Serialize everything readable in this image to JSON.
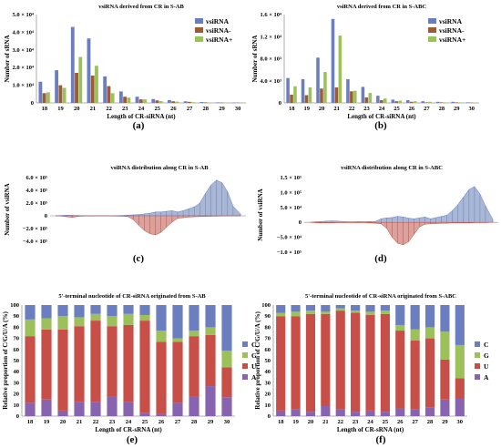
{
  "colors": {
    "blue": "#6b7fc0",
    "brown": "#9c5a36",
    "green": "#9dc15a",
    "red": "#c84f48",
    "yellow": "#e8c44a",
    "purple": "#8864b0"
  },
  "chart_data": [
    {
      "panel": "(a)",
      "type": "bar",
      "title": "vsiRNA derived from CR in S-AB",
      "xlabel": "Length of CR-siRNA (nt)",
      "ylabel": "Number of sRNA",
      "categories": [
        "18",
        "19",
        "20",
        "21",
        "22",
        "23",
        "24",
        "25",
        "26",
        "27",
        "28",
        "29",
        "30"
      ],
      "ylim": [
        0,
        50000
      ],
      "yticks": [
        0,
        10000,
        20000,
        30000,
        40000,
        50000
      ],
      "ytick_labels": [
        "0",
        "1.0 × 10⁴",
        "2.0 × 10⁴",
        "3.0 × 10⁴",
        "4.0 × 10⁴",
        "5.0 × 10⁴"
      ],
      "legend": "top-right",
      "series": [
        {
          "name": "vsiRNA",
          "color": "#6b7fc0",
          "values": [
            12000,
            18500,
            43000,
            36500,
            15000,
            6500,
            3500,
            2200,
            1600,
            900,
            500,
            300,
            200
          ]
        },
        {
          "name": "vsiRNA-",
          "color": "#9c5a36",
          "values": [
            5500,
            10000,
            17000,
            15500,
            9500,
            3500,
            2000,
            1400,
            900,
            600,
            300,
            200,
            100
          ]
        },
        {
          "name": "vsiRNA+",
          "color": "#9dc15a",
          "values": [
            6000,
            8500,
            26000,
            21000,
            5500,
            3000,
            2000,
            1000,
            700,
            400,
            200,
            100,
            100
          ]
        }
      ]
    },
    {
      "panel": "(b)",
      "type": "bar",
      "title": "vsiRNA derived from CR in S-ABC",
      "xlabel": "Length of CR-siRNA (nt)",
      "ylabel": "Number of sRNA",
      "categories": [
        "18",
        "19",
        "20",
        "21",
        "22",
        "23",
        "24",
        "25",
        "26",
        "27",
        "28",
        "29",
        "30"
      ],
      "ylim": [
        0,
        16000
      ],
      "yticks": [
        0,
        4000,
        8000,
        12000,
        16000
      ],
      "ytick_labels": [
        "0",
        "4.0 × 10³",
        "8.0 × 10³",
        "1.2 × 10⁴",
        "1.6 × 10⁴"
      ],
      "legend": "top-right",
      "series": [
        {
          "name": "vsiRNA",
          "color": "#6b7fc0",
          "values": [
            4500,
            4300,
            8200,
            15200,
            4300,
            2900,
            1300,
            600,
            500,
            300,
            200,
            200,
            100
          ]
        },
        {
          "name": "vsiRNA-",
          "color": "#9c5a36",
          "values": [
            1500,
            1400,
            2600,
            2800,
            2100,
            1000,
            500,
            300,
            200,
            100,
            100,
            100,
            50
          ]
        },
        {
          "name": "vsiRNA+",
          "color": "#9dc15a",
          "values": [
            3000,
            2800,
            5600,
            12200,
            2200,
            1800,
            800,
            400,
            300,
            200,
            100,
            100,
            50
          ]
        }
      ]
    },
    {
      "panel": "(c)",
      "type": "area",
      "title": "vsiRNA distribution along CR in S-AB",
      "ylabel": "Number of vsiRNA",
      "ylim": [
        -400000,
        600000
      ],
      "yticks": [
        -400000,
        -200000,
        0,
        200000,
        400000,
        600000
      ],
      "ytick_labels": [
        "−4.0 × 10⁵",
        "−2.0 × 10⁵",
        "0",
        "2.0 × 10⁵",
        "4.0 × 10⁵",
        "6.0 × 10⁵"
      ],
      "x_positions": [
        0,
        0.03,
        0.06,
        0.09,
        0.12,
        0.15,
        0.18,
        0.21,
        0.24,
        0.27,
        0.3,
        0.33,
        0.36,
        0.39,
        0.42,
        0.45,
        0.48,
        0.51,
        0.54,
        0.57,
        0.6,
        0.63,
        0.66,
        0.69,
        0.72,
        0.75,
        0.78,
        0.81,
        0.84,
        0.87,
        0.9,
        0.93,
        0.96,
        1.0
      ],
      "positive": [
        0,
        5000,
        10000,
        8000,
        5000,
        3000,
        2000,
        2000,
        3000,
        2000,
        2000,
        3000,
        5000,
        10000,
        15000,
        20000,
        30000,
        40000,
        60000,
        60000,
        70000,
        80000,
        60000,
        80000,
        110000,
        140000,
        200000,
        350000,
        480000,
        560000,
        520000,
        380000,
        150000,
        30000
      ],
      "negative": [
        0,
        5000,
        15000,
        25000,
        10000,
        5000,
        3000,
        3000,
        2000,
        2000,
        3000,
        5000,
        8000,
        10000,
        60000,
        150000,
        230000,
        280000,
        300000,
        260000,
        180000,
        100000,
        40000,
        30000,
        20000,
        15000,
        12000,
        10000,
        8000,
        6000,
        4000,
        3000,
        2000,
        0
      ]
    },
    {
      "panel": "(d)",
      "type": "area",
      "title": "vsiRNA distribution along CR in S-ABC",
      "ylabel": "Number of vsiRNA",
      "ylim": [
        -100000,
        150000
      ],
      "yticks": [
        -100000,
        -50000,
        0,
        50000,
        100000,
        150000
      ],
      "ytick_labels": [
        "−1.0 × 10⁵",
        "−5.0 × 10⁴",
        "0",
        "5.0 × 10⁴",
        "1.0 × 10⁵",
        "1.5 × 10⁵"
      ],
      "x_positions": [
        0,
        0.03,
        0.06,
        0.09,
        0.12,
        0.15,
        0.18,
        0.21,
        0.24,
        0.27,
        0.3,
        0.33,
        0.36,
        0.39,
        0.42,
        0.45,
        0.48,
        0.51,
        0.54,
        0.57,
        0.6,
        0.63,
        0.66,
        0.69,
        0.72,
        0.75,
        0.78,
        0.81,
        0.84,
        0.87,
        0.9,
        0.93,
        0.96,
        1.0
      ],
      "positive": [
        0,
        2000,
        3000,
        4000,
        5000,
        4000,
        3000,
        2000,
        2000,
        3000,
        2000,
        3000,
        3000,
        12000,
        15000,
        16000,
        20000,
        18000,
        14000,
        12000,
        15000,
        18000,
        12000,
        16000,
        20000,
        24000,
        40000,
        60000,
        85000,
        110000,
        120000,
        95000,
        55000,
        10000
      ],
      "negative": [
        0,
        1000,
        2000,
        2000,
        2000,
        1000,
        1000,
        1000,
        1000,
        1000,
        1000,
        2000,
        3000,
        5000,
        20000,
        50000,
        70000,
        75000,
        65000,
        40000,
        15000,
        6000,
        5000,
        4000,
        3000,
        3000,
        2000,
        2000,
        2000,
        2000,
        1000,
        1000,
        1000,
        0
      ]
    },
    {
      "panel": "(e)",
      "type": "bar",
      "title": "5'-terminal nucleotide of CR-siRNA originated from S-AB",
      "xlabel": "Length of CR-sRNA (nt)",
      "ylabel": "Relative proportion of C/G/U/A (%)",
      "stacked": true,
      "categories": [
        "18",
        "19",
        "20",
        "21",
        "22",
        "23",
        "24",
        "25",
        "26",
        "27",
        "28",
        "29",
        "30"
      ],
      "ylim": [
        0,
        100
      ],
      "yticks": [
        0,
        10,
        20,
        30,
        40,
        50,
        60,
        70,
        80,
        90,
        100
      ],
      "legend": "right",
      "series": [
        {
          "name": "A",
          "color": "#8864b0",
          "values": [
            12,
            15,
            5,
            13,
            13,
            18,
            13,
            3,
            2,
            12,
            18,
            27,
            17
          ]
        },
        {
          "name": "U",
          "color": "#c84f48",
          "values": [
            60,
            63,
            73,
            68,
            73,
            63,
            69,
            83,
            65,
            55,
            54,
            46,
            27
          ]
        },
        {
          "name": "G",
          "color": "#9dc15a",
          "values": [
            15,
            10,
            12,
            8,
            6,
            9,
            10,
            5,
            10,
            3,
            5,
            7,
            15
          ]
        },
        {
          "name": "C",
          "color": "#6b7fc0",
          "values": [
            13,
            12,
            10,
            11,
            8,
            10,
            8,
            9,
            23,
            30,
            23,
            20,
            41
          ]
        }
      ]
    },
    {
      "panel": "(f)",
      "type": "bar",
      "title": "5'-terminal nucleotide of CR-siRNA originated from S-ABC",
      "xlabel": "Length of CR-sRNA (nt)",
      "ylabel": "Relative proportion of C/G/U/A (%)",
      "stacked": true,
      "categories": [
        "18",
        "19",
        "20",
        "21",
        "22",
        "23",
        "24",
        "25",
        "26",
        "27",
        "28",
        "29",
        "30"
      ],
      "ylim": [
        0,
        100
      ],
      "yticks": [
        0,
        10,
        20,
        30,
        40,
        50,
        60,
        70,
        80,
        90,
        100
      ],
      "legend": "right",
      "series": [
        {
          "name": "A",
          "color": "#8864b0",
          "values": [
            5,
            6,
            4,
            9,
            6,
            4,
            5,
            4,
            7,
            6,
            8,
            15,
            16
          ]
        },
        {
          "name": "U",
          "color": "#c84f48",
          "values": [
            85,
            84,
            88,
            83,
            89,
            89,
            86,
            88,
            70,
            62,
            62,
            36,
            18
          ]
        },
        {
          "name": "G",
          "color": "#9dc15a",
          "values": [
            3,
            4,
            3,
            2,
            2,
            2,
            3,
            3,
            5,
            10,
            10,
            25,
            30
          ]
        },
        {
          "name": "C",
          "color": "#6b7fc0",
          "values": [
            7,
            6,
            5,
            6,
            3,
            5,
            6,
            5,
            18,
            22,
            20,
            24,
            36
          ]
        }
      ]
    }
  ]
}
